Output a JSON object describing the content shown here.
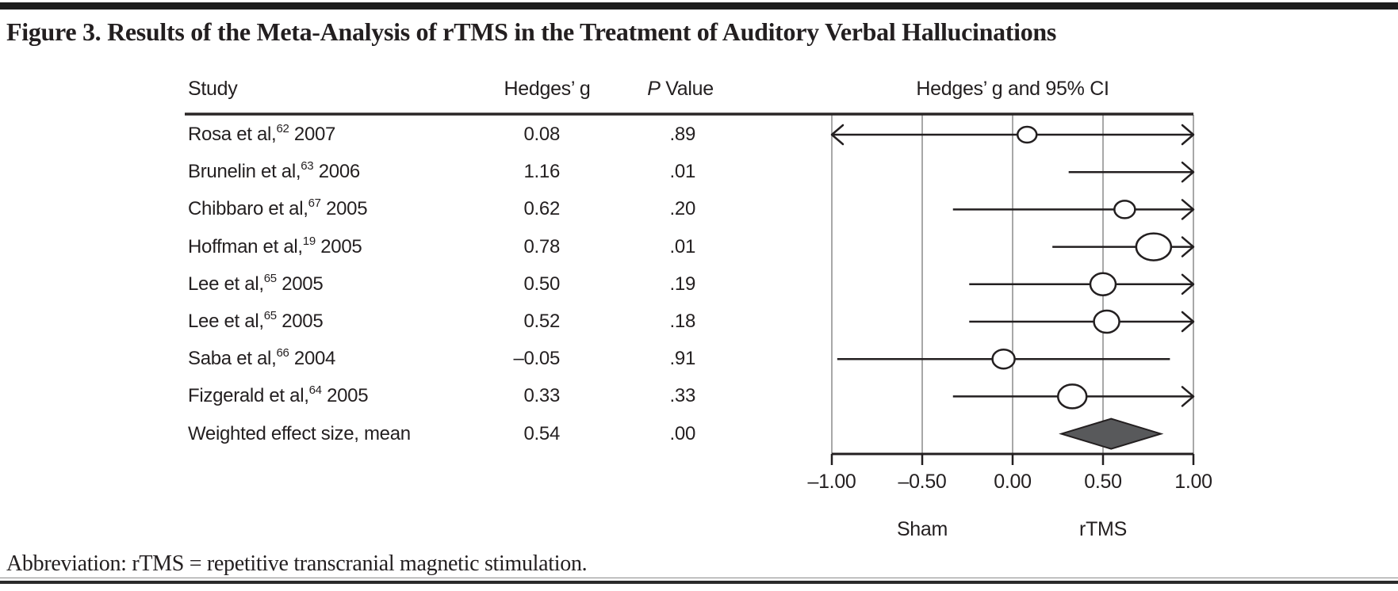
{
  "title": "Figure 3. Results of the Meta-Analysis of rTMS in the Treatment of Auditory Verbal Hallucinations",
  "abbreviation": "Abbreviation: rTMS = repetitive transcranial magnetic stimulation.",
  "table": {
    "headers": {
      "study": "Study",
      "hedges_g": "Hedges’ g",
      "p_italic": "P",
      "p_rest": " Value",
      "ci": "Hedges’ g and 95% CI"
    },
    "rows": [
      {
        "study": "Rosa et al,",
        "ref": "62",
        "year": " 2007",
        "g": "0.08",
        "p": ".89"
      },
      {
        "study": "Brunelin et al,",
        "ref": "63",
        "year": " 2006",
        "g": "1.16",
        "p": ".01"
      },
      {
        "study": "Chibbaro et al,",
        "ref": "67",
        "year": " 2005",
        "g": "0.62",
        "p": ".20"
      },
      {
        "study": "Hoffman et al,",
        "ref": "19",
        "year": " 2005",
        "g": "0.78",
        "p": ".01"
      },
      {
        "study": "Lee et al,",
        "ref": "65",
        "year": " 2005",
        "g": "0.50",
        "p": ".19"
      },
      {
        "study": "Lee et al,",
        "ref": "65",
        "year": " 2005",
        "g": "0.52",
        "p": ".18"
      },
      {
        "study": "Saba et al,",
        "ref": "66",
        "year": " 2004",
        "g": "–0.05",
        "p": ".91"
      },
      {
        "study": "Fizgerald et al,",
        "ref": "64",
        "year": " 2005",
        "g": "0.33",
        "p": ".33"
      },
      {
        "study": "Weighted effect size, mean",
        "ref": "",
        "year": "",
        "g": "0.54",
        "p": ".00"
      }
    ]
  },
  "axis": {
    "tick_labels": [
      "–1.00",
      "–0.50",
      "0.00",
      "0.50",
      "1.00"
    ],
    "left_label": "Sham",
    "right_label": "rTMS"
  },
  "colors": {
    "text": "#231f20",
    "line": "#231f20",
    "gridline": "#a8a8a8",
    "diamond_fill": "#58595b",
    "marker_fill": "#ffffff"
  },
  "chart_data": {
    "type": "scatter",
    "subtype": "forest-plot",
    "title": "Hedges’ g and 95% CI",
    "xlabel": "Hedges’ g",
    "xlim": [
      -1.0,
      1.0
    ],
    "xticks": [
      -1.0,
      -0.5,
      0.0,
      0.5,
      1.0
    ],
    "grid": "vertical-on",
    "group_labels": [
      {
        "label": "Sham",
        "x": -0.5
      },
      {
        "label": "rTMS",
        "x": 0.5
      }
    ],
    "series": [
      {
        "study": "Rosa et al, 2007",
        "reference": 62,
        "hedges_g": 0.08,
        "p_value": 0.89,
        "ci_display": [
          -1.0,
          1.0
        ],
        "arrow_left": true,
        "arrow_right": true,
        "marker": "circle",
        "marker_rx": 12,
        "marker_ry": 10
      },
      {
        "study": "Brunelin et al, 2006",
        "reference": 63,
        "hedges_g": 1.16,
        "p_value": 0.01,
        "ci_display": [
          0.31,
          1.0
        ],
        "arrow_left": false,
        "arrow_right": true,
        "marker": "none",
        "marker_rx": 0,
        "marker_ry": 0
      },
      {
        "study": "Chibbaro et al, 2005",
        "reference": 67,
        "hedges_g": 0.62,
        "p_value": 0.2,
        "ci_display": [
          -0.33,
          1.0
        ],
        "arrow_left": false,
        "arrow_right": true,
        "marker": "circle",
        "marker_rx": 13,
        "marker_ry": 11
      },
      {
        "study": "Hoffman et al, 2005",
        "reference": 19,
        "hedges_g": 0.78,
        "p_value": 0.01,
        "ci_display": [
          0.22,
          1.0
        ],
        "arrow_left": false,
        "arrow_right": true,
        "marker": "circle",
        "marker_rx": 22,
        "marker_ry": 17
      },
      {
        "study": "Lee et al, 2005",
        "reference": 65,
        "hedges_g": 0.5,
        "p_value": 0.19,
        "ci_display": [
          -0.24,
          1.0
        ],
        "arrow_left": false,
        "arrow_right": true,
        "marker": "circle",
        "marker_rx": 16,
        "marker_ry": 14
      },
      {
        "study": "Lee et al, 2005",
        "reference": 65,
        "hedges_g": 0.52,
        "p_value": 0.18,
        "ci_display": [
          -0.24,
          1.0
        ],
        "arrow_left": false,
        "arrow_right": true,
        "marker": "circle",
        "marker_rx": 16,
        "marker_ry": 14
      },
      {
        "study": "Saba et al, 2004",
        "reference": 66,
        "hedges_g": -0.05,
        "p_value": 0.91,
        "ci_display": [
          -0.97,
          0.87
        ],
        "arrow_left": false,
        "arrow_right": false,
        "marker": "circle",
        "marker_rx": 14,
        "marker_ry": 12
      },
      {
        "study": "Fizgerald et al, 2005",
        "reference": 64,
        "hedges_g": 0.33,
        "p_value": 0.33,
        "ci_display": [
          -0.33,
          1.0
        ],
        "arrow_left": false,
        "arrow_right": true,
        "marker": "circle",
        "marker_rx": 18,
        "marker_ry": 15
      }
    ],
    "summary": {
      "label": "Weighted effect size, mean",
      "hedges_g": 0.54,
      "p_value": 0.0,
      "marker": "diamond",
      "diamond_display": [
        0.27,
        0.82
      ]
    }
  }
}
